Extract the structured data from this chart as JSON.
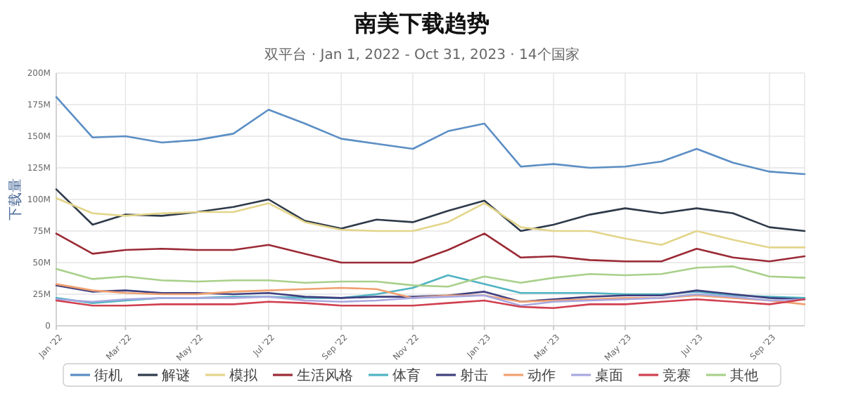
{
  "chart_data": {
    "type": "line",
    "title": "南美下载趋势",
    "subtitle": "双平台 · Jan 1, 2022 - Oct 31, 2023 · 14个国家",
    "ylabel": "下载量",
    "x": [
      "2022-01",
      "2022-02",
      "2022-03",
      "2022-04",
      "2022-05",
      "2022-06",
      "2022-07",
      "2022-08",
      "2022-09",
      "2022-10",
      "2022-11",
      "2022-12",
      "2023-01",
      "2023-02",
      "2023-03",
      "2023-04",
      "2023-05",
      "2023-06",
      "2023-07",
      "2023-08",
      "2023-09",
      "2023-10"
    ],
    "xlim": [
      "2022-01",
      "2023-10"
    ],
    "xticks": [
      {
        "value": "2022-01",
        "label": "Jan '22"
      },
      {
        "value": "2022-03",
        "label": "Mar '22"
      },
      {
        "value": "2022-05",
        "label": "May '22"
      },
      {
        "value": "2022-07",
        "label": "Jul '22"
      },
      {
        "value": "2022-09",
        "label": "Sep '22"
      },
      {
        "value": "2022-11",
        "label": "Nov '22"
      },
      {
        "value": "2023-01",
        "label": "Jan '23"
      },
      {
        "value": "2023-03",
        "label": "Mar '23"
      },
      {
        "value": "2023-05",
        "label": "May '23"
      },
      {
        "value": "2023-07",
        "label": "Jul '23"
      },
      {
        "value": "2023-09",
        "label": "Sep '23"
      }
    ],
    "ylim": [
      0,
      200
    ],
    "yticks": [
      {
        "value": 0,
        "label": "0"
      },
      {
        "value": 25,
        "label": "25M"
      },
      {
        "value": 50,
        "label": "50M"
      },
      {
        "value": 75,
        "label": "75M"
      },
      {
        "value": 100,
        "label": "100M"
      },
      {
        "value": 125,
        "label": "125M"
      },
      {
        "value": 150,
        "label": "150M"
      },
      {
        "value": 175,
        "label": "175M"
      },
      {
        "value": 200,
        "label": "200M"
      }
    ],
    "grid": true,
    "legend": "bottom",
    "marker": "none",
    "line_style": "solid",
    "series": [
      {
        "name": "街机",
        "color": "#5b8ec4",
        "values": [
          181,
          149,
          150,
          145,
          147,
          152,
          171,
          160,
          148,
          144,
          140,
          154,
          160,
          126,
          128,
          125,
          126,
          130,
          140,
          129,
          122,
          120
        ]
      },
      {
        "name": "解谜",
        "color": "#2e3a4a",
        "values": [
          108,
          80,
          88,
          87,
          90,
          94,
          100,
          83,
          77,
          84,
          82,
          91,
          99,
          75,
          80,
          88,
          93,
          89,
          93,
          89,
          78,
          75
        ]
      },
      {
        "name": "模拟",
        "color": "#e3d58a",
        "values": [
          101,
          89,
          87,
          89,
          90,
          90,
          97,
          82,
          76,
          75,
          75,
          82,
          97,
          78,
          75,
          75,
          69,
          64,
          75,
          68,
          62,
          62
        ]
      },
      {
        "name": "生活风格",
        "color": "#9b2a35",
        "values": [
          73,
          57,
          60,
          61,
          60,
          60,
          64,
          57,
          50,
          50,
          50,
          60,
          73,
          54,
          55,
          52,
          51,
          51,
          61,
          54,
          51,
          55
        ]
      },
      {
        "name": "体育",
        "color": "#4fb3c2",
        "values": [
          22,
          18,
          20,
          22,
          22,
          23,
          23,
          22,
          22,
          25,
          30,
          40,
          33,
          26,
          26,
          26,
          25,
          25,
          27,
          24,
          23,
          22
        ]
      },
      {
        "name": "射击",
        "color": "#3f3f7f",
        "values": [
          32,
          27,
          28,
          26,
          26,
          25,
          26,
          23,
          22,
          23,
          23,
          24,
          27,
          19,
          21,
          23,
          24,
          24,
          28,
          25,
          22,
          21
        ]
      },
      {
        "name": "动作",
        "color": "#f0a070",
        "values": [
          33,
          28,
          26,
          25,
          25,
          27,
          28,
          29,
          30,
          29,
          22,
          24,
          24,
          19,
          20,
          21,
          22,
          22,
          24,
          22,
          20,
          17
        ]
      },
      {
        "name": "桌面",
        "color": "#a8a8e0",
        "values": [
          21,
          19,
          21,
          22,
          22,
          22,
          23,
          20,
          19,
          20,
          22,
          23,
          24,
          16,
          19,
          20,
          21,
          22,
          25,
          23,
          20,
          21
        ]
      },
      {
        "name": "竞赛",
        "color": "#d04050",
        "values": [
          20,
          16,
          16,
          17,
          17,
          17,
          19,
          18,
          16,
          16,
          16,
          18,
          20,
          15,
          14,
          17,
          17,
          19,
          21,
          19,
          17,
          21
        ]
      },
      {
        "name": "其他",
        "color": "#a8d08a",
        "values": [
          45,
          37,
          39,
          36,
          35,
          36,
          36,
          34,
          35,
          35,
          32,
          31,
          39,
          34,
          38,
          41,
          40,
          41,
          46,
          47,
          39,
          38
        ]
      }
    ]
  }
}
